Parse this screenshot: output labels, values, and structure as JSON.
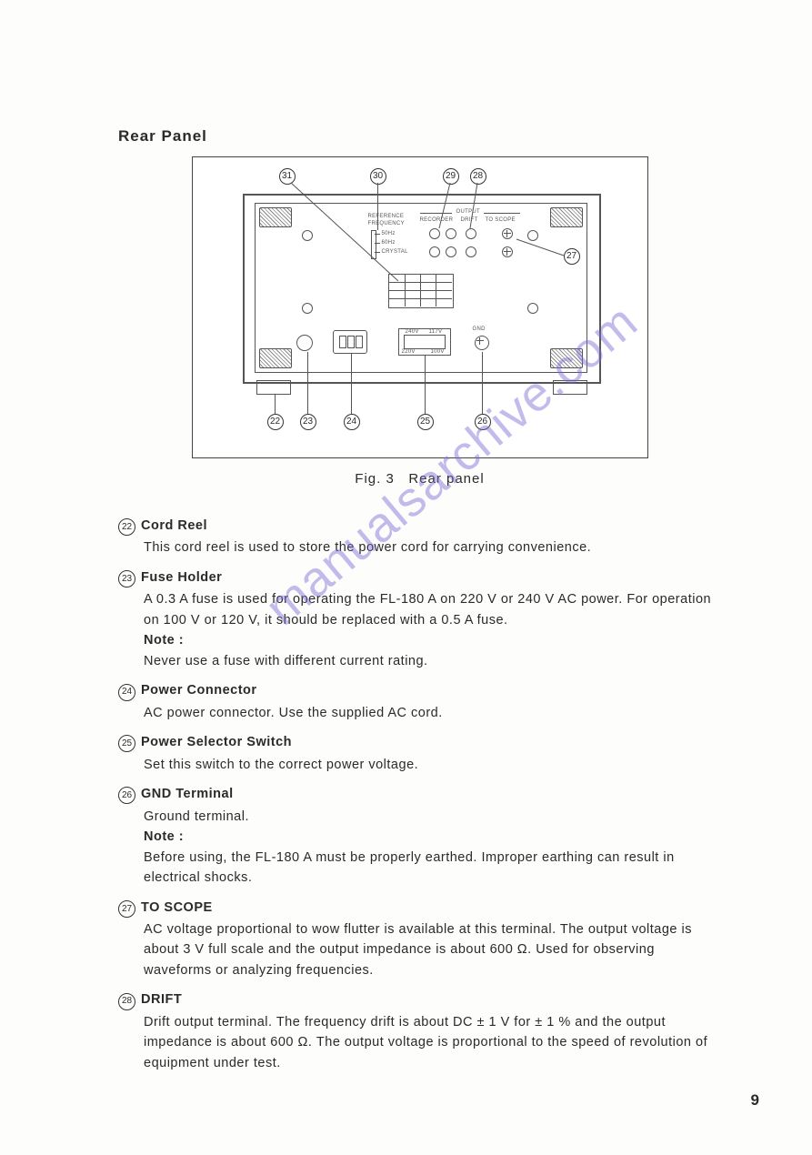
{
  "header": {
    "title": "Rear Panel"
  },
  "figure": {
    "caption_prefix": "Fig. 3",
    "caption_text": "Rear panel",
    "callouts_top": [
      {
        "n": "31"
      },
      {
        "n": "30"
      },
      {
        "n": "29"
      },
      {
        "n": "28"
      }
    ],
    "callouts_right": [
      {
        "n": "27"
      }
    ],
    "callouts_bottom": [
      {
        "n": "22"
      },
      {
        "n": "23"
      },
      {
        "n": "24"
      },
      {
        "n": "25"
      },
      {
        "n": "26"
      }
    ],
    "panel_labels": {
      "ref_freq_l1": "REFERENCE",
      "ref_freq_l2": "FREQUENCY",
      "output": "OUTPUT",
      "recorder": "RECORDER",
      "drift": "DRIFT",
      "to_scope": "TO SCOPE",
      "sel_50": "50Hz",
      "sel_60": "60Hz",
      "sel_xtal": "CRYSTAL",
      "v240": "240V",
      "v117": "117V",
      "v220": "220V",
      "v100": "100V",
      "gnd": "GND"
    }
  },
  "items": [
    {
      "num": "22",
      "title": "Cord Reel",
      "paras": [
        "This cord reel is used to store the power cord for carrying convenience."
      ]
    },
    {
      "num": "23",
      "title": "Fuse Holder",
      "paras": [
        "A 0.3 A fuse is used for operating the FL-180 A on 220 V or 240 V AC power. For operation on 100 V or 120 V, it should be replaced with a 0.5 A fuse."
      ],
      "note_label": "Note :",
      "note_paras": [
        "Never use a fuse with different current rating."
      ]
    },
    {
      "num": "24",
      "title": "Power Connector",
      "paras": [
        "AC power connector.  Use the supplied AC cord."
      ]
    },
    {
      "num": "25",
      "title": "Power Selector Switch",
      "paras": [
        "Set this switch to the correct power voltage."
      ]
    },
    {
      "num": "26",
      "title": "GND Terminal",
      "paras": [
        "Ground terminal."
      ],
      "note_label": "Note :",
      "note_paras": [
        "Before using, the FL-180 A must be properly earthed.  Improper earthing can result in electrical shocks."
      ]
    },
    {
      "num": "27",
      "title": "TO SCOPE",
      "paras": [
        "AC voltage proportional to wow flutter is available at this terminal.  The output voltage is about 3 V full scale and the output impedance is about 600 Ω.  Used for observing waveforms or analyzing frequencies."
      ]
    },
    {
      "num": "28",
      "title": "DRIFT",
      "paras": [
        "Drift output terminal.  The frequency drift is about DC ± 1 V for ± 1 % and the output impedance is about 600 Ω.  The output voltage is proportional to the speed of revolution of equipment under test."
      ]
    }
  ],
  "page_number": "9",
  "watermark": "manualsarchive.com"
}
